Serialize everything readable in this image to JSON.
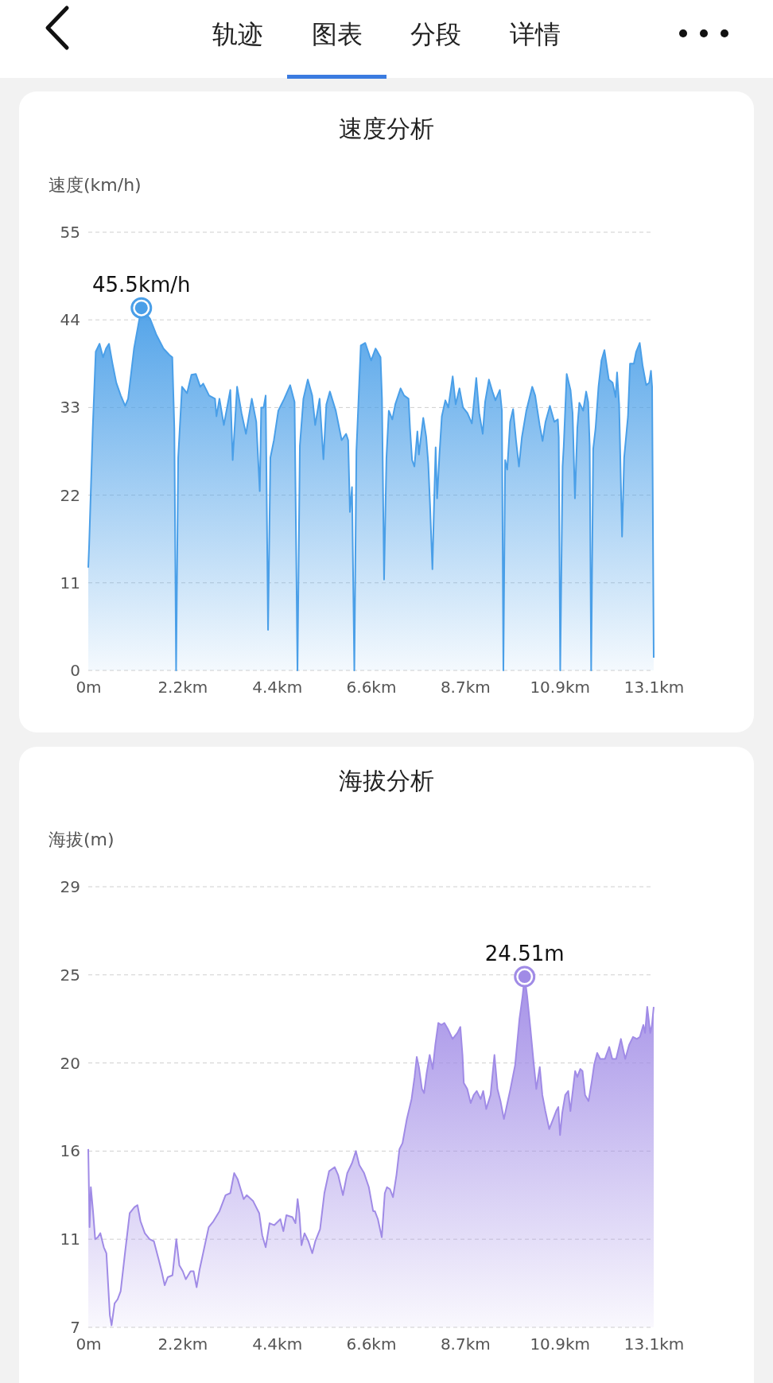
{
  "chart_data": [
    {
      "type": "other",
      "annotations": [
        "轨迹",
        "图表",
        "分段",
        "详情"
      ]
    },
    {
      "type": "area",
      "title": "速度分析",
      "ylabel": "速度(km/h)",
      "grid": "y",
      "line_style": "solid",
      "marker": "none",
      "xlim": [
        0,
        13.1
      ],
      "xticks": [
        {
          "value": 0,
          "label": "0m"
        },
        {
          "value": 2.18,
          "label": "2.2km"
        },
        {
          "value": 4.37,
          "label": "4.4km"
        },
        {
          "value": 6.55,
          "label": "6.6km"
        },
        {
          "value": 8.73,
          "label": "8.7km"
        },
        {
          "value": 10.92,
          "label": "10.9km"
        },
        {
          "value": 13.1,
          "label": "13.1km"
        }
      ],
      "ylim": [
        0,
        55
      ],
      "yticks": [
        0,
        11,
        22,
        33,
        44,
        55
      ],
      "annotations": [
        {
          "text": "45.5km/h",
          "x": 1.23,
          "y": 45.5
        }
      ],
      "series": [
        {
          "color": "#4a9fe8",
          "x": [
            0,
            0.02,
            0.104,
            0.173,
            0.261,
            0.343,
            0.411,
            0.48,
            0.562,
            0.65,
            0.753,
            0.855,
            0.923,
            1.06,
            1.23,
            1.435,
            1.572,
            1.742,
            1.878,
            1.947,
            1.994,
            2.035,
            2.083,
            2.172,
            2.288,
            2.39,
            2.493,
            2.595,
            2.663,
            2.8,
            2.936,
            2.97,
            3.039,
            3.141,
            3.291,
            3.346,
            3.448,
            3.551,
            3.653,
            3.789,
            3.892,
            3.973,
            4.007,
            4.062,
            4.11,
            4.165,
            4.219,
            4.301,
            4.403,
            4.54,
            4.677,
            4.779,
            4.847,
            4.902,
            4.984,
            5.086,
            5.188,
            5.257,
            5.359,
            5.448,
            5.516,
            5.598,
            5.734,
            5.871,
            5.973,
            6.021,
            6.062,
            6.11,
            6.164,
            6.212,
            6.314,
            6.417,
            6.553,
            6.655,
            6.669,
            6.771,
            6.805,
            6.853,
            6.908,
            6.963,
            7.044,
            7.113,
            7.236,
            7.318,
            7.42,
            7.454,
            7.502,
            7.556,
            7.625,
            7.659,
            7.761,
            7.829,
            7.877,
            7.918,
            7.973,
            8.013,
            8.048,
            8.082,
            8.136,
            8.191,
            8.273,
            8.341,
            8.443,
            8.512,
            8.6,
            8.682,
            8.784,
            8.887,
            8.989,
            9.057,
            9.139,
            9.194,
            9.282,
            9.364,
            9.433,
            9.535,
            9.583,
            9.617,
            9.658,
            9.706,
            9.774,
            9.842,
            9.91,
            9.978,
            10.047,
            10.149,
            10.286,
            10.354,
            10.457,
            10.525,
            10.593,
            10.695,
            10.798,
            10.879,
            10.9,
            10.934,
            10.989,
            11.016,
            11.084,
            11.173,
            11.221,
            11.275,
            11.33,
            11.377,
            11.466,
            11.535,
            11.582,
            11.617,
            11.651,
            11.698,
            11.753,
            11.821,
            11.889,
            11.958,
            12.06,
            12.149,
            12.217,
            12.251,
            12.299,
            12.367,
            12.415,
            12.504,
            12.551,
            12.64,
            12.694,
            12.776,
            12.845,
            12.927,
            12.995,
            13.036,
            13.063,
            13.1
          ],
          "values": [
            12.9,
            15.7,
            30.4,
            40.0,
            41.0,
            39.3,
            40.4,
            41.0,
            38.5,
            36.1,
            34.5,
            33.2,
            34.1,
            40.4,
            45.5,
            44.1,
            42.2,
            40.4,
            39.6,
            39.3,
            30.4,
            0,
            26.7,
            35.6,
            34.8,
            37.1,
            37.2,
            35.6,
            36.0,
            34.5,
            34.1,
            31.9,
            34.1,
            30.8,
            35.2,
            26.4,
            35.6,
            32.3,
            29.7,
            34.1,
            31.2,
            22.5,
            33.0,
            33.0,
            34.5,
            5.1,
            26.7,
            28.9,
            32.6,
            34.1,
            35.8,
            33.7,
            0,
            28.2,
            34.1,
            36.5,
            34.5,
            30.8,
            34.1,
            26.5,
            33.4,
            35.0,
            32.6,
            28.9,
            29.7,
            28.9,
            19.9,
            23.0,
            0,
            27.5,
            40.8,
            41.1,
            38.9,
            40.4,
            40.3,
            39.3,
            34.1,
            11.4,
            26.7,
            32.6,
            31.5,
            33.4,
            35.4,
            34.5,
            34.1,
            30.4,
            26.4,
            25.6,
            30.0,
            27.1,
            31.7,
            29.3,
            26.0,
            20.8,
            12.7,
            21.2,
            28.0,
            21.6,
            27.1,
            31.9,
            33.9,
            33.0,
            36.9,
            33.4,
            35.4,
            33.0,
            32.3,
            31.0,
            36.7,
            32.3,
            29.7,
            33.7,
            36.5,
            35.0,
            33.9,
            35.2,
            32.6,
            0,
            26.4,
            25.2,
            31.2,
            32.8,
            28.9,
            25.6,
            29.3,
            32.6,
            35.6,
            34.5,
            30.8,
            28.8,
            31.2,
            33.2,
            31.2,
            31.5,
            29.3,
            0,
            25.6,
            28.2,
            37.2,
            35.2,
            32.3,
            21.6,
            30.4,
            33.6,
            32.6,
            35.0,
            33.7,
            28.2,
            0,
            27.8,
            30.4,
            35.6,
            38.9,
            40.2,
            36.5,
            36.1,
            34.3,
            37.4,
            33.4,
            16.8,
            26.7,
            31.9,
            38.5,
            38.5,
            40.0,
            41.1,
            38.2,
            35.8,
            36.1,
            37.6,
            35.6,
            1.6
          ]
        }
      ]
    },
    {
      "type": "area",
      "title": "海拔分析",
      "ylabel": "海拔(m)",
      "grid": "y",
      "line_style": "solid",
      "marker": "none",
      "xlim": [
        0,
        13.1
      ],
      "xticks": [
        {
          "value": 0,
          "label": "0m"
        },
        {
          "value": 2.18,
          "label": "2.2km"
        },
        {
          "value": 4.37,
          "label": "4.4km"
        },
        {
          "value": 6.55,
          "label": "6.6km"
        },
        {
          "value": 8.73,
          "label": "8.7km"
        },
        {
          "value": 10.92,
          "label": "10.9km"
        },
        {
          "value": 13.1,
          "label": "13.1km"
        }
      ],
      "ylim": [
        7,
        29
      ],
      "yticks": [
        7,
        {
          "value": 11.4,
          "label": "11"
        },
        {
          "value": 15.8,
          "label": "16"
        },
        {
          "value": 20.2,
          "label": "20"
        },
        {
          "value": 24.6,
          "label": "25"
        },
        29
      ],
      "annotations": [
        {
          "text": "24.51m",
          "x": 10.11,
          "y": 24.51
        }
      ],
      "series": [
        {
          "color": "#a08be6",
          "x": [
            0,
            0.03,
            0.06,
            0.11,
            0.16,
            0.22,
            0.28,
            0.36,
            0.42,
            0.5,
            0.54,
            0.61,
            0.68,
            0.75,
            0.85,
            0.96,
            1.07,
            1.14,
            1.21,
            1.31,
            1.42,
            1.52,
            1.63,
            1.7,
            1.77,
            1.84,
            1.95,
            2.04,
            2.11,
            2.19,
            2.26,
            2.37,
            2.44,
            2.51,
            2.58,
            2.69,
            2.79,
            2.9,
            3.04,
            3.18,
            3.29,
            3.38,
            3.46,
            3.6,
            3.67,
            3.82,
            3.96,
            4.03,
            4.11,
            4.2,
            4.31,
            4.45,
            4.52,
            4.59,
            4.73,
            4.8,
            4.85,
            4.89,
            4.94,
            5.01,
            5.1,
            5.19,
            5.26,
            5.37,
            5.47,
            5.58,
            5.71,
            5.79,
            5.9,
            6.0,
            6.11,
            6.2,
            6.28,
            6.39,
            6.5,
            6.6,
            6.64,
            6.71,
            6.8,
            6.87,
            6.92,
            6.99,
            7.06,
            7.14,
            7.21,
            7.28,
            7.38,
            7.49,
            7.56,
            7.61,
            7.66,
            7.73,
            7.78,
            7.84,
            7.91,
            7.98,
            8.04,
            8.11,
            8.18,
            8.25,
            8.33,
            8.44,
            8.55,
            8.62,
            8.67,
            8.7,
            8.78,
            8.86,
            8.93,
            9.0,
            9.09,
            9.15,
            9.22,
            9.32,
            9.41,
            9.48,
            9.55,
            9.63,
            9.69,
            9.78,
            9.89,
            9.99,
            10.06,
            10.11,
            10.17,
            10.24,
            10.31,
            10.38,
            10.46,
            10.52,
            10.59,
            10.68,
            10.77,
            10.84,
            10.89,
            10.93,
            10.98,
            11.05,
            11.12,
            11.17,
            11.23,
            11.28,
            11.33,
            11.4,
            11.45,
            11.51,
            11.59,
            11.66,
            11.72,
            11.79,
            11.86,
            11.97,
            12.07,
            12.14,
            12.23,
            12.34,
            12.44,
            12.53,
            12.62,
            12.71,
            12.78,
            12.86,
            12.9,
            12.95,
            13.02,
            13.06,
            13.1
          ],
          "values": [
            15.9,
            12.0,
            14.0,
            12.8,
            11.4,
            11.5,
            11.7,
            11.0,
            10.7,
            7.6,
            7.1,
            8.2,
            8.4,
            8.8,
            10.7,
            12.7,
            13.0,
            13.1,
            12.3,
            11.7,
            11.4,
            11.3,
            10.4,
            9.8,
            9.1,
            9.5,
            9.6,
            11.4,
            10.1,
            9.8,
            9.4,
            9.8,
            9.8,
            9.0,
            9.9,
            11.0,
            12.0,
            12.3,
            12.8,
            13.6,
            13.7,
            14.7,
            14.4,
            13.4,
            13.6,
            13.3,
            12.7,
            11.6,
            11.0,
            12.2,
            12.1,
            12.4,
            11.8,
            12.6,
            12.5,
            12.2,
            13.4,
            12.7,
            11.1,
            11.7,
            11.3,
            10.7,
            11.3,
            11.9,
            13.7,
            14.8,
            15.0,
            14.6,
            13.6,
            14.7,
            15.2,
            15.8,
            15.1,
            14.7,
            14.0,
            12.8,
            12.8,
            12.4,
            11.5,
            13.7,
            14.0,
            13.9,
            13.5,
            14.6,
            15.9,
            16.2,
            17.4,
            18.4,
            19.5,
            20.5,
            20.0,
            18.9,
            18.7,
            19.7,
            20.6,
            19.9,
            21.1,
            22.2,
            22.1,
            22.2,
            21.9,
            21.4,
            21.7,
            22.0,
            20.6,
            19.2,
            18.9,
            18.2,
            18.6,
            18.8,
            18.4,
            18.8,
            17.9,
            18.6,
            20.6,
            18.9,
            18.3,
            17.4,
            18.0,
            18.9,
            20.1,
            22.4,
            23.5,
            24.51,
            23.5,
            22.0,
            20.4,
            18.9,
            20.0,
            18.6,
            17.8,
            16.9,
            17.4,
            17.8,
            18.0,
            16.6,
            17.7,
            18.6,
            18.8,
            17.8,
            18.9,
            19.8,
            19.5,
            19.9,
            19.8,
            18.6,
            18.3,
            19.2,
            20.1,
            20.7,
            20.4,
            20.4,
            21.0,
            20.4,
            20.4,
            21.4,
            20.4,
            21.1,
            21.5,
            21.4,
            21.5,
            22.1,
            21.7,
            23.0,
            21.7,
            22.1,
            23.0
          ]
        }
      ]
    }
  ]
}
